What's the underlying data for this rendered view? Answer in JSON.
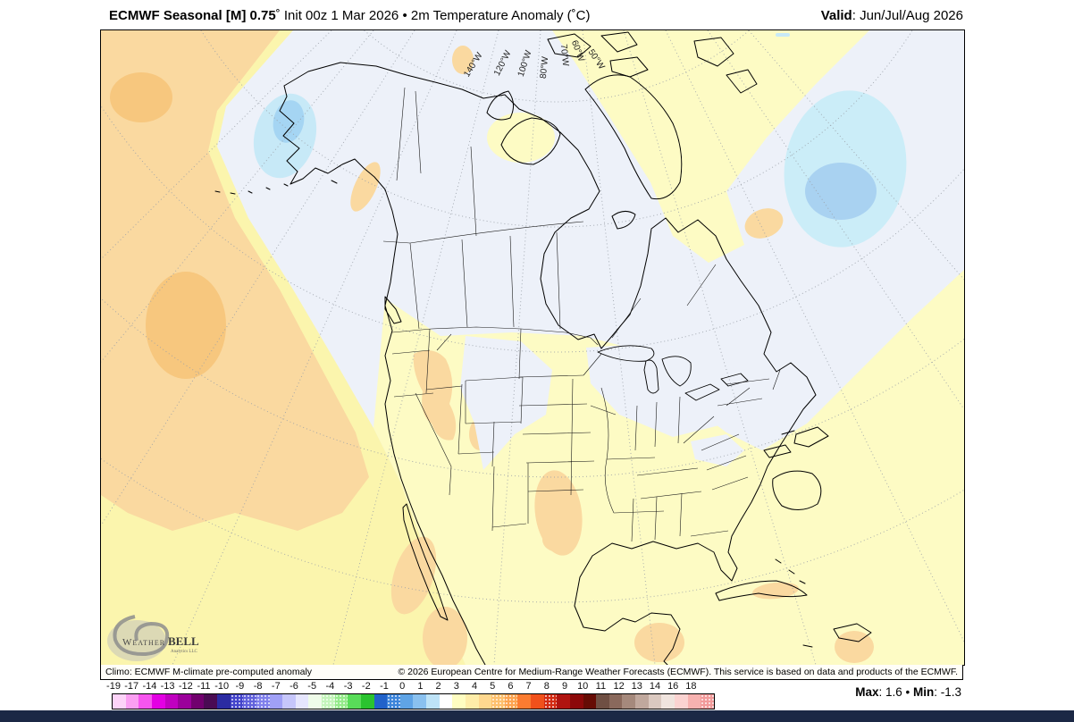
{
  "header": {
    "title_bold": "ECMWF Seasonal [M] 0.75",
    "title_rest": "˚ Init 00z 1 Mar 2026 • 2m Temperature Anomaly (˚C)",
    "valid_label": "Valid",
    "valid_value": ": Jun/Jul/Aug 2026"
  },
  "map": {
    "lon_labels": [
      "140°W",
      "120°W",
      "100°W",
      "80°W",
      "70°W",
      "60°W",
      "50°W"
    ],
    "logo": {
      "brand_weather": "Weather",
      "brand_bell": "BELL",
      "brand_sub": "Analytics LLC"
    },
    "palette": {
      "background": "#edf1f9",
      "near_zero_yellow": "#fdfbc4",
      "pacific_yellow": "#fbf5ad",
      "warm_orange": "#fad9a0",
      "warm_orange_deep": "#f7c77e",
      "cool_blue_light": "#c7e9f7",
      "cool_blue_mid": "#a5d5f3",
      "atlantic_blue": "#cbedf8",
      "atlantic_blue_core": "#a9d2f1",
      "graticule": "#9aa0a8"
    }
  },
  "attribution": {
    "climo": "Climo: ECMWF M-climate pre-computed anomaly",
    "copyright": "© 2026 European Centre for Medium-Range Weather Forecasts (ECMWF). This service is based on data and products of the ECMWF."
  },
  "colorbar": {
    "labels": [
      "-19",
      "-17",
      "-14",
      "-13",
      "-12",
      "-11",
      "-10",
      "-9",
      "-8",
      "-7",
      "-6",
      "-5",
      "-4",
      "-3",
      "-2",
      "-1",
      "0",
      "1",
      "2",
      "3",
      "4",
      "5",
      "6",
      "7",
      "8",
      "9",
      "10",
      "11",
      "12",
      "13",
      "14",
      "16",
      "18"
    ],
    "colors": [
      "#fdd3f8",
      "#fb9ff2",
      "#f655ee",
      "#e300e3",
      "#c000c0",
      "#9b009b",
      "#71006e",
      "#4a0b53",
      "#2b2ba2",
      "#4444cb",
      "#6161dc",
      "#8080ec",
      "#a0a0f6",
      "#c6c6fb",
      "#e6e6fd",
      "#effce9",
      "#c4f5bb",
      "#95eb8b",
      "#59dc59",
      "#2ac32f",
      "#2162ca",
      "#3c84da",
      "#5fa4e6",
      "#8ac1ef",
      "#bee3f7",
      "#ffffff",
      "#fffdc1",
      "#ffeda9",
      "#ffd88f",
      "#fec06d",
      "#fda450",
      "#fb7c31",
      "#f1511b",
      "#d32a12",
      "#b01410",
      "#8c0909",
      "#660c04",
      "#6f4f43",
      "#8a695c",
      "#a5897c",
      "#c0a89d",
      "#dbc9c0",
      "#f0e4de",
      "#fbd3d1",
      "#f7b2b0",
      "#f29a9a"
    ],
    "stippled": [
      9,
      10,
      11,
      16,
      17,
      21,
      29,
      30,
      33,
      45
    ]
  },
  "stats": {
    "max_label": "Max",
    "max_value": ": 1.6",
    "separator": " • ",
    "min_label": "Min",
    "min_value": ": -1.3"
  },
  "footer": {
    "strip_color": "#1b2845"
  }
}
